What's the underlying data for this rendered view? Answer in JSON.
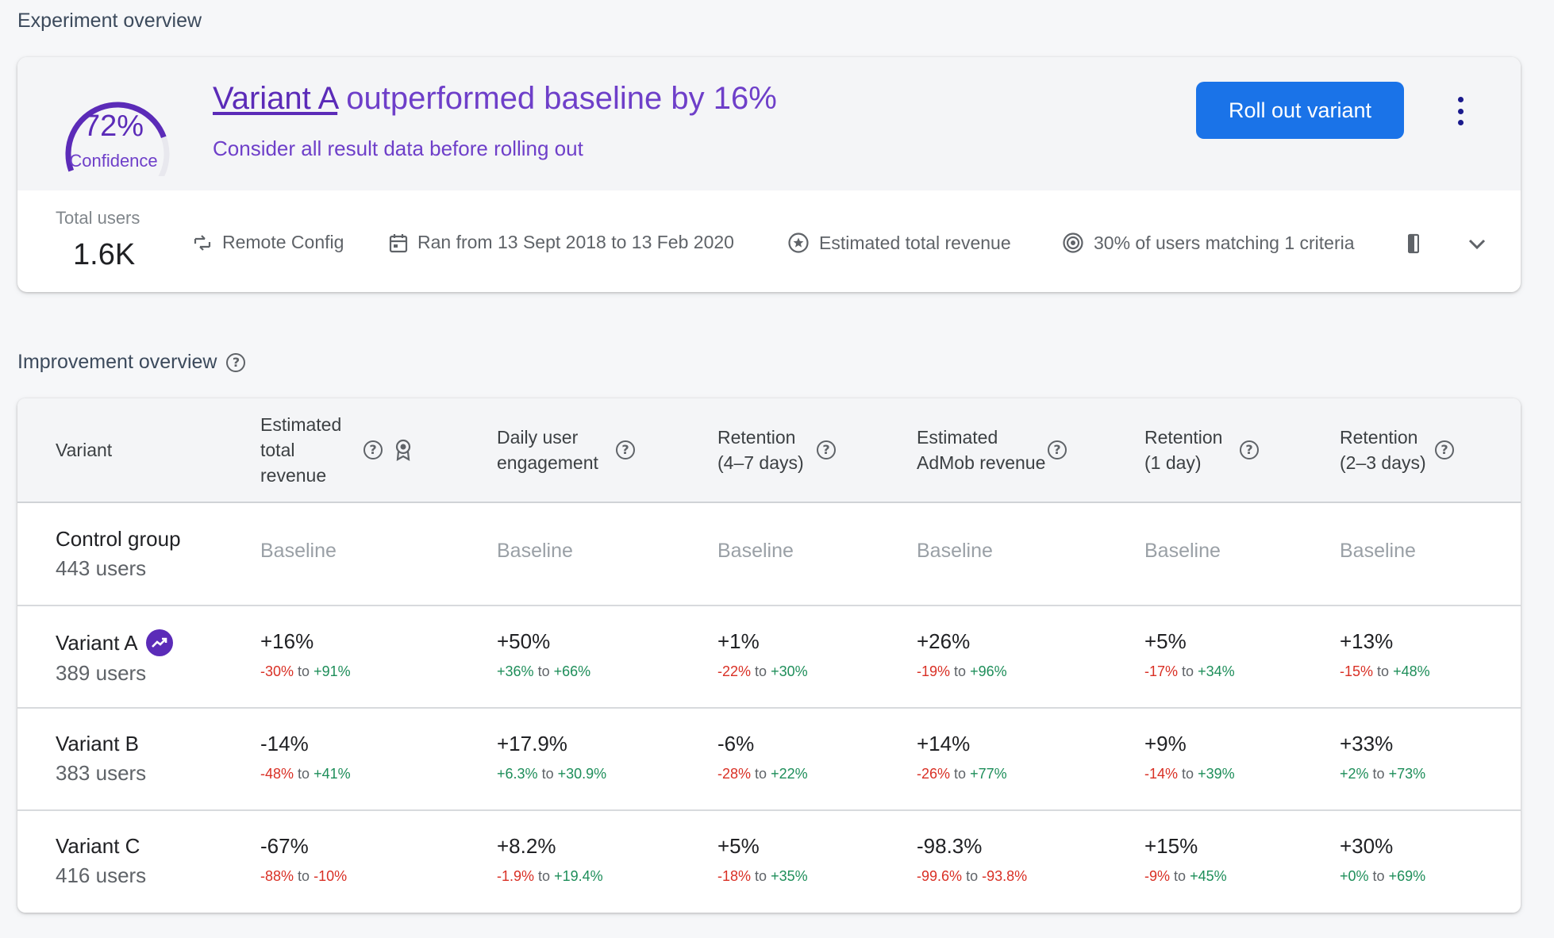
{
  "sections": {
    "experiment_overview": "Experiment overview",
    "improvement_overview": "Improvement overview"
  },
  "summary": {
    "confidence_value": "72%",
    "confidence_fraction": 0.72,
    "confidence_label": "Confidence",
    "headline_link": "Variant A",
    "headline_rest": " outperformed baseline by 16%",
    "subline": "Consider all result data before rolling out",
    "rollout_button": "Roll out variant",
    "more_icon": "more-vert-icon"
  },
  "meta": {
    "total_users_label": "Total users",
    "total_users_value": "1.6K",
    "items": [
      {
        "icon": "remote-config-icon",
        "text": "Remote Config"
      },
      {
        "icon": "calendar-icon",
        "text": "Ran from 13 Sept 2018 to 13 Feb 2020"
      },
      {
        "icon": "goal-star-icon",
        "text": "Estimated total revenue"
      },
      {
        "icon": "target-icon",
        "text": "30% of users matching 1 criteria"
      }
    ],
    "expand_icon": "chevron-down-icon"
  },
  "table": {
    "columns": [
      {
        "label": "Variant"
      },
      {
        "label": "Estimated total revenue",
        "help": true,
        "goal": true
      },
      {
        "label": "Daily user engagement",
        "help": true
      },
      {
        "label": "Retention (4–7 days)",
        "help": true
      },
      {
        "label": "Estimated AdMob revenue",
        "help": true
      },
      {
        "label": "Retention (1 day)",
        "help": true
      },
      {
        "label": "Retention (2–3 days)",
        "help": true
      }
    ],
    "rows": [
      {
        "name": "Control group",
        "users": "443 users",
        "leader": false,
        "cells": [
          {
            "baseline": "Baseline"
          },
          {
            "baseline": "Baseline"
          },
          {
            "baseline": "Baseline"
          },
          {
            "baseline": "Baseline"
          },
          {
            "baseline": "Baseline"
          },
          {
            "baseline": "Baseline"
          }
        ]
      },
      {
        "name": "Variant A",
        "users": "389 users",
        "leader": true,
        "cells": [
          {
            "value": "+16%",
            "low": "-30%",
            "to": "to",
            "high": "+91%"
          },
          {
            "value": "+50%",
            "low": "+36%",
            "to": "to",
            "high": "+66%"
          },
          {
            "value": "+1%",
            "low": "-22%",
            "to": "to",
            "high": "+30%"
          },
          {
            "value": "+26%",
            "low": "-19%",
            "to": "to",
            "high": "+96%"
          },
          {
            "value": "+5%",
            "low": "-17%",
            "to": "to",
            "high": "+34%"
          },
          {
            "value": "+13%",
            "low": "-15%",
            "to": "to",
            "high": "+48%"
          }
        ]
      },
      {
        "name": "Variant B",
        "users": "383 users",
        "leader": false,
        "cells": [
          {
            "value": "-14%",
            "low": "-48%",
            "to": "to",
            "high": "+41%"
          },
          {
            "value": "+17.9%",
            "low": "+6.3%",
            "to": "to",
            "high": "+30.9%"
          },
          {
            "value": "-6%",
            "low": "-28%",
            "to": "to",
            "high": "+22%"
          },
          {
            "value": "+14%",
            "low": "-26%",
            "to": "to",
            "high": "+77%"
          },
          {
            "value": "+9%",
            "low": "-14%",
            "to": "to",
            "high": "+39%"
          },
          {
            "value": "+33%",
            "low": "+2%",
            "to": "to",
            "high": "+73%"
          }
        ]
      },
      {
        "name": "Variant C",
        "users": "416 users",
        "leader": false,
        "cells": [
          {
            "value": "-67%",
            "low": "-88%",
            "to": "to",
            "high": "-10%"
          },
          {
            "value": "+8.2%",
            "low": "-1.9%",
            "to": "to",
            "high": "+19.4%"
          },
          {
            "value": "+5%",
            "low": "-18%",
            "to": "to",
            "high": "+35%"
          },
          {
            "value": "-98.3%",
            "low": "-99.6%",
            "to": "to",
            "high": "-93.8%"
          },
          {
            "value": "+15%",
            "low": "-9%",
            "to": "to",
            "high": "+45%"
          },
          {
            "value": "+30%",
            "low": "+0%",
            "to": "to",
            "high": "+69%"
          }
        ]
      }
    ]
  },
  "colors": {
    "accent_purple": "#6e3fc9",
    "primary_blue": "#1a73e8",
    "negative": "#d93025",
    "positive": "#1e8e5a"
  }
}
